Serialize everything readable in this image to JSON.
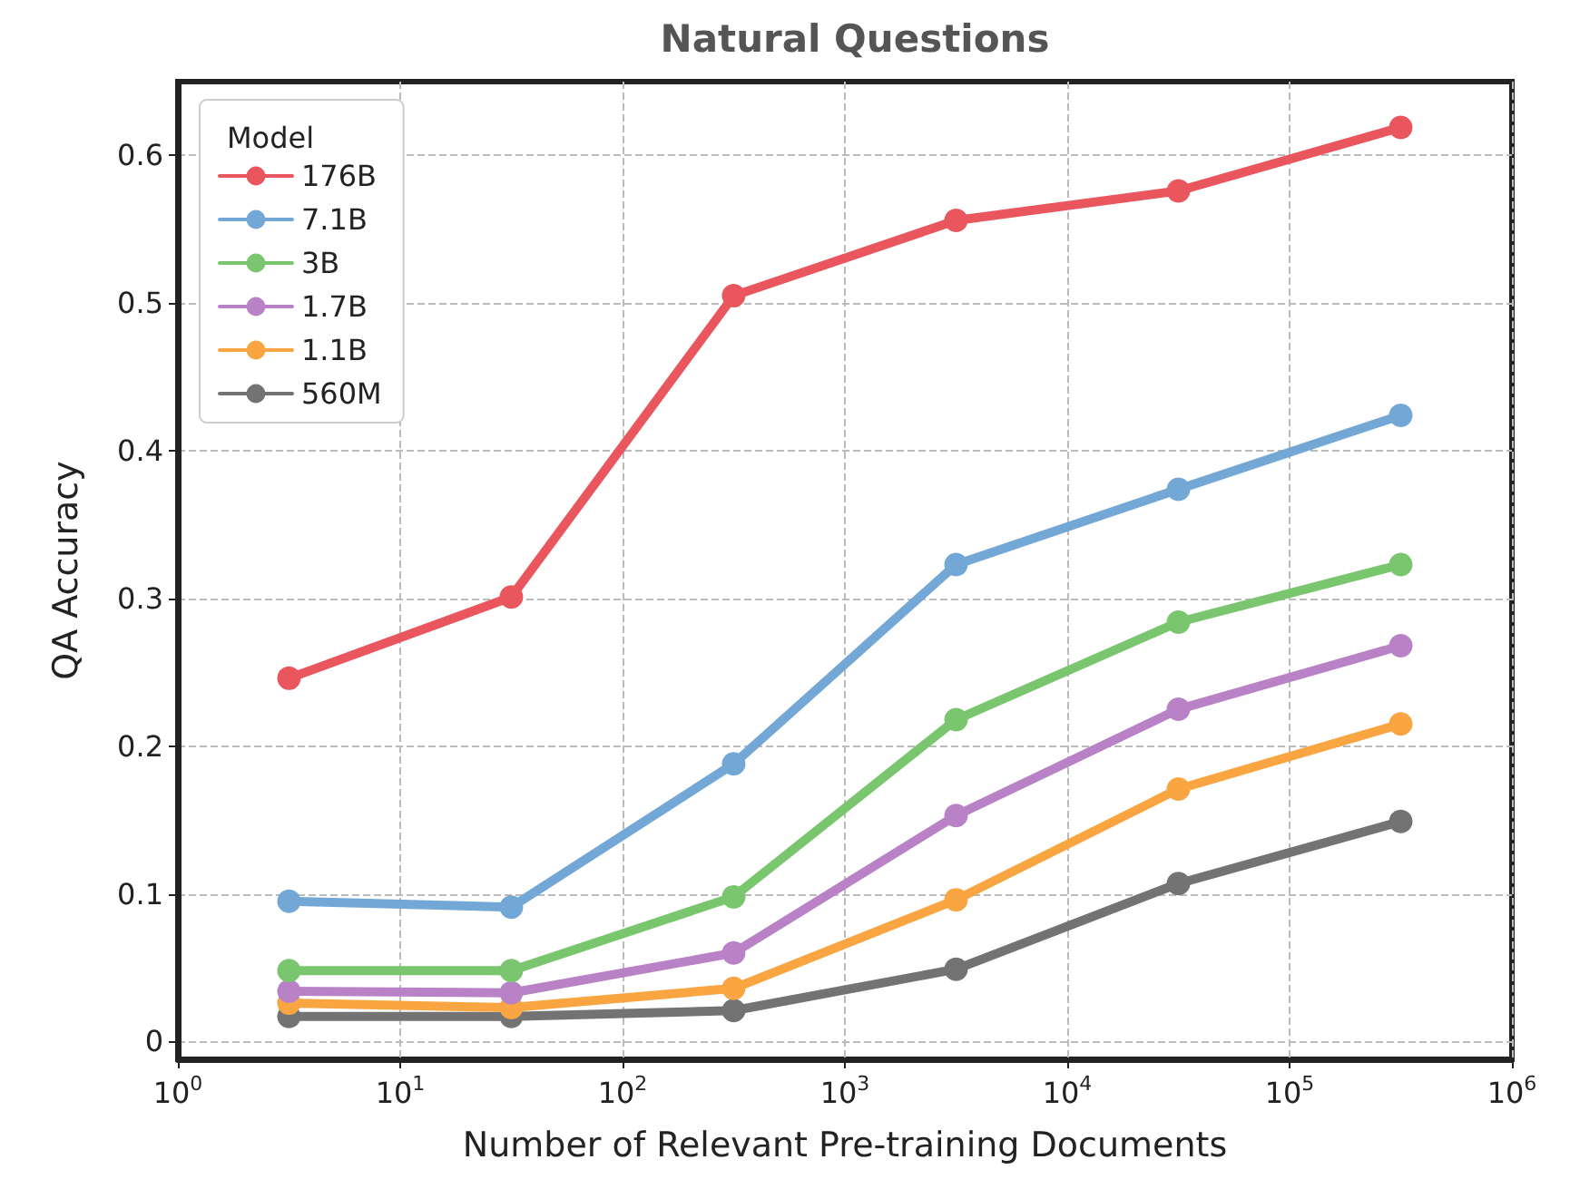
{
  "chart_data": {
    "type": "line",
    "title": "Natural Questions",
    "xlabel": "Number of Relevant Pre-training Documents",
    "ylabel": "QA Accuracy",
    "legend_title": "Model",
    "x": [
      3.16,
      31.6,
      316,
      3162,
      31623,
      316228
    ],
    "series": [
      {
        "name": "176B",
        "color": "#e9565e",
        "values": [
          0.246,
          0.301,
          0.505,
          0.556,
          0.576,
          0.619
        ]
      },
      {
        "name": "7.1B",
        "color": "#73a7d6",
        "values": [
          0.095,
          0.091,
          0.188,
          0.323,
          0.374,
          0.424
        ]
      },
      {
        "name": "3B",
        "color": "#7ac66f",
        "values": [
          0.048,
          0.048,
          0.098,
          0.218,
          0.284,
          0.323
        ]
      },
      {
        "name": "1.7B",
        "color": "#b982c6",
        "values": [
          0.034,
          0.033,
          0.06,
          0.153,
          0.225,
          0.268
        ]
      },
      {
        "name": "1.1B",
        "color": "#f9a541",
        "values": [
          0.026,
          0.023,
          0.036,
          0.096,
          0.171,
          0.215
        ]
      },
      {
        "name": "560M",
        "color": "#737373",
        "values": [
          0.017,
          0.017,
          0.021,
          0.049,
          0.107,
          0.149
        ]
      }
    ],
    "log": "x",
    "xlim": [
      1,
      1000000
    ],
    "xticks": [
      {
        "value": 1,
        "label": "10$^{0}$"
      },
      {
        "value": 10,
        "label": "10$^{1}$"
      },
      {
        "value": 100,
        "label": "10$^{2}$"
      },
      {
        "value": 1000,
        "label": "10$^{3}$"
      },
      {
        "value": 10000,
        "label": "10$^{4}$"
      },
      {
        "value": 100000,
        "label": "10$^{5}$"
      },
      {
        "value": 1000000,
        "label": "10$^{6}$"
      }
    ],
    "ylim": [
      -0.012,
      0.65
    ],
    "yticks": [
      0,
      0.1,
      0.2,
      0.3,
      0.4,
      0.5,
      0.6
    ],
    "grid": true,
    "legend": "top left",
    "marker": "circle",
    "line_style": "solid"
  }
}
